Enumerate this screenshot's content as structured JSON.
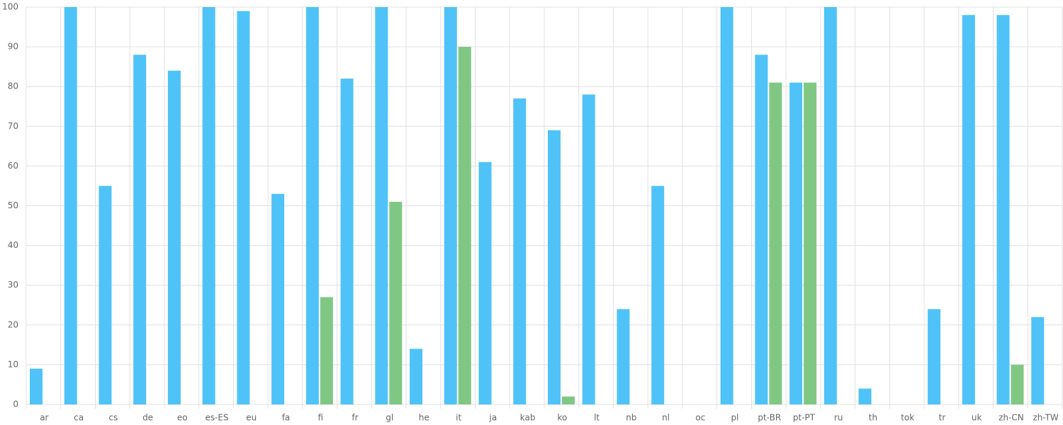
{
  "chart_data": {
    "type": "bar",
    "categories": [
      "ar",
      "ca",
      "cs",
      "de",
      "eo",
      "es-ES",
      "eu",
      "fa",
      "fi",
      "fr",
      "gl",
      "he",
      "it",
      "ja",
      "kab",
      "ko",
      "lt",
      "nb",
      "nl",
      "oc",
      "pl",
      "pt-BR",
      "pt-PT",
      "ru",
      "th",
      "tok",
      "tr",
      "uk",
      "zh-CN",
      "zh-TW"
    ],
    "series": [
      {
        "color": "#4fc3f7",
        "values": [
          9,
          100,
          55,
          88,
          84,
          100,
          99,
          53,
          100,
          82,
          100,
          14,
          100,
          61,
          77,
          69,
          78,
          24,
          55,
          0,
          100,
          88,
          81,
          100,
          4,
          0,
          24,
          98,
          98,
          22
        ]
      },
      {
        "color": "#81c784",
        "values": [
          0,
          0,
          0,
          0,
          0,
          0,
          0,
          0,
          27,
          0,
          51,
          0,
          90,
          0,
          0,
          2,
          0,
          0,
          0,
          0,
          0,
          81,
          81,
          0,
          0,
          0,
          0,
          0,
          10,
          0
        ]
      }
    ],
    "ylim": [
      0,
      100
    ],
    "yticks": [
      0,
      10,
      20,
      30,
      40,
      50,
      60,
      70,
      80,
      90,
      100
    ],
    "grid": true
  }
}
